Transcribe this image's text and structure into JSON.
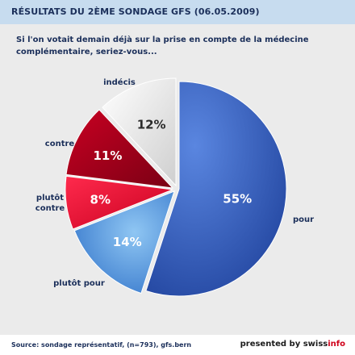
{
  "header": {
    "title": "RÉSULTATS DU 2ÈME SONDAGE GFS (06.05.2009)"
  },
  "question": "Si l'on votait demain déjà sur la prise en compte de la médecine complémentaire, seriez-vous...",
  "chart_data": {
    "type": "pie",
    "start_angle_deg": 0,
    "direction": "clockwise",
    "slices": [
      {
        "key": "pour",
        "label": "pour",
        "value": 55,
        "value_label": "55%",
        "color": "#2b55b5"
      },
      {
        "key": "plutot_pour",
        "label": "plutôt pour",
        "value": 14,
        "value_label": "14%",
        "color": "#4a90e0"
      },
      {
        "key": "plutot_contre",
        "label": "plutôt contre",
        "value": 8,
        "value_label": "8%",
        "color": "#e8002a"
      },
      {
        "key": "contre",
        "label": "contre",
        "value": 11,
        "value_label": "11%",
        "color": "#a8001e"
      },
      {
        "key": "indecis",
        "label": "indécis",
        "value": 12,
        "value_label": "12%",
        "color": "#d9d9d9"
      }
    ]
  },
  "footer": {
    "source": "Source: sondage représentatif, (n=793), gfs.bern",
    "presented_by": "presented by swiss",
    "brand_accent": "info"
  }
}
